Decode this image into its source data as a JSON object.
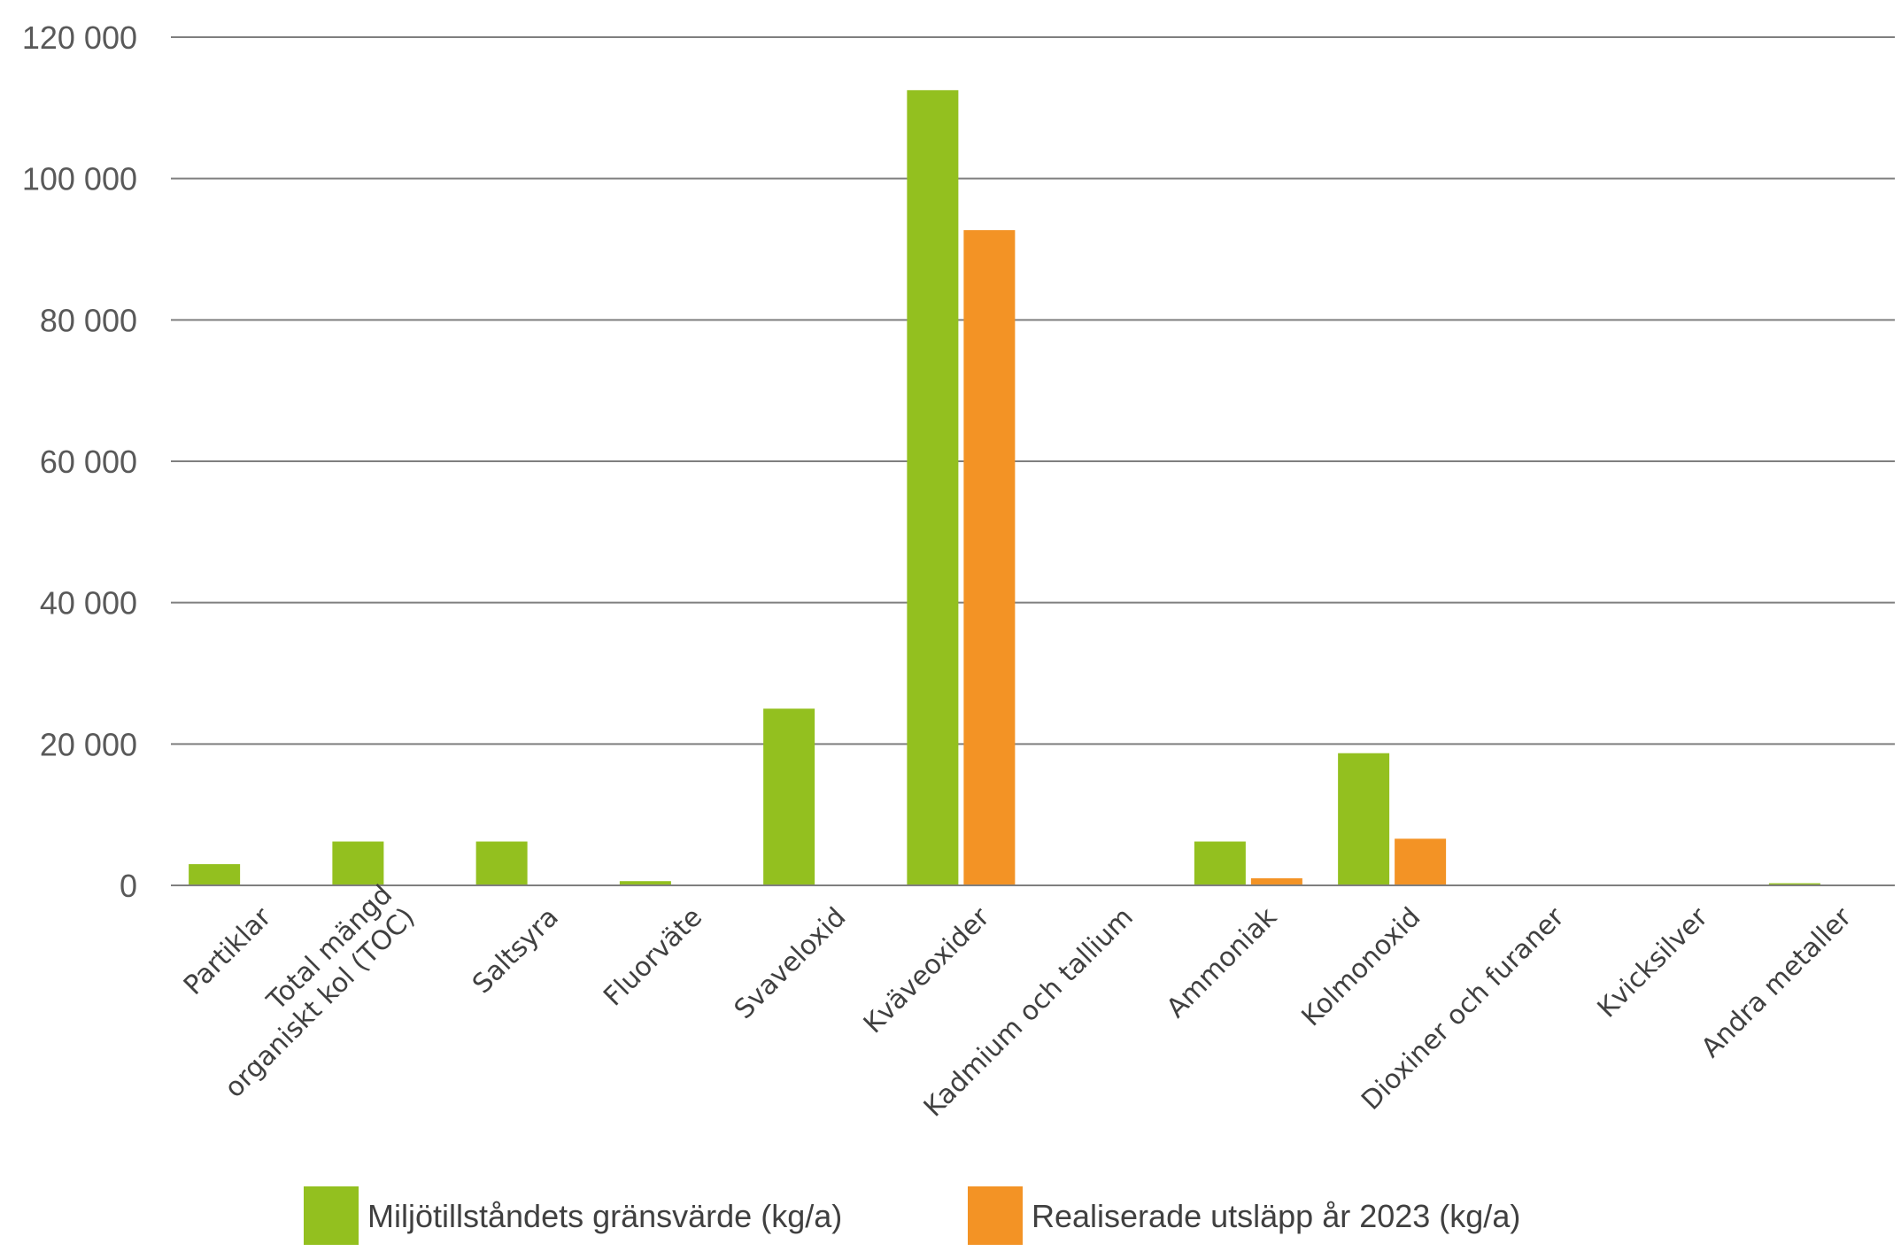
{
  "chart_data": {
    "type": "bar",
    "categories": [
      [
        "Partiklar"
      ],
      [
        "Total mängd",
        "organiskt kol (TOC)"
      ],
      [
        "Saltsyra"
      ],
      [
        "Fluorväte"
      ],
      [
        "Svaveloxid"
      ],
      [
        "Kväveoxider"
      ],
      [
        "Kadmium och tallium"
      ],
      [
        "Ammoniak"
      ],
      [
        "Kolmonoxid"
      ],
      [
        "Dioxiner och furaner"
      ],
      [
        "Kvicksilver"
      ],
      [
        "Andra metaller"
      ]
    ],
    "series": [
      {
        "name": "Miljötillståndets gränsvärde (kg/a)",
        "color": "#93c01f",
        "values": [
          3000,
          6200,
          6200,
          600,
          25000,
          112500,
          100,
          6200,
          18700,
          0,
          100,
          300
        ]
      },
      {
        "name": "Realiserade utsläpp år 2023 (kg/a)",
        "color": "#f39325",
        "values": [
          100,
          100,
          100,
          100,
          100,
          92700,
          50,
          1000,
          6600,
          0,
          50,
          100
        ]
      }
    ],
    "y_ticks": [
      "0",
      "20 000",
      "40 000",
      "60 000",
      "80 000",
      "100 000",
      "120 000"
    ],
    "ylim": [
      0,
      120000
    ],
    "grid": true,
    "legend_position": "bottom",
    "title": "",
    "xlabel": "",
    "ylabel": ""
  }
}
